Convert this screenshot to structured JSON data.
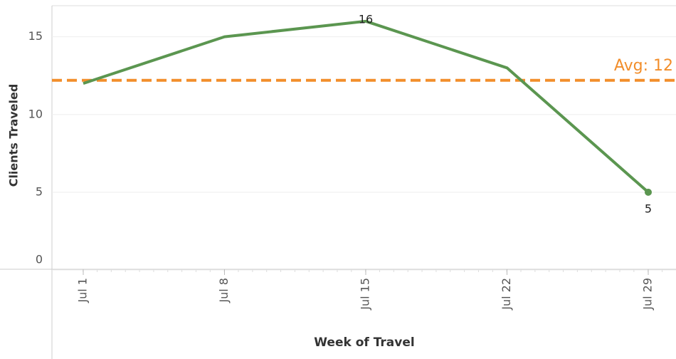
{
  "chart_data": {
    "type": "line",
    "x_label": "Week of Travel",
    "y_label": "Clients Traveled",
    "categories": [
      "Jul 1",
      "Jul 8",
      "Jul 15",
      "Jul 22",
      "Jul 29"
    ],
    "series": [
      {
        "name": "Clients Traveled",
        "color": "#5b9650",
        "values": [
          12,
          15,
          16,
          13,
          5
        ],
        "show_labels": [
          false,
          false,
          true,
          false,
          true
        ]
      }
    ],
    "reference_line": {
      "value": 12.2,
      "label": "Avg: 12",
      "color": "#f28e2b"
    },
    "ylim": [
      0,
      17
    ],
    "yticks": [
      0,
      5,
      10,
      15
    ],
    "grid": true
  }
}
